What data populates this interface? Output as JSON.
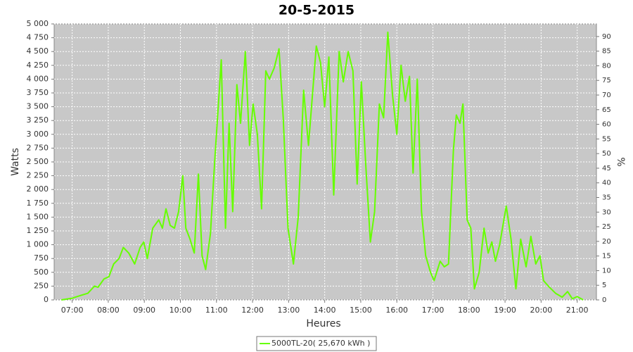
{
  "chart_data": {
    "type": "line",
    "title": "20-5-2015",
    "x_label": "Heures",
    "y_label": "Watts",
    "y2_label": "%",
    "x": [
      "06:42",
      "07:00",
      "07:14",
      "07:26",
      "07:37",
      "07:43",
      "07:53",
      "08:01",
      "08:09",
      "08:18",
      "08:25",
      "08:34",
      "08:44",
      "08:53",
      "08:59",
      "09:05",
      "09:14",
      "09:24",
      "09:30",
      "09:36",
      "09:43",
      "09:50",
      "09:57",
      "10:04",
      "10:09",
      "10:16",
      "10:23",
      "10:30",
      "10:36",
      "10:42",
      "10:50",
      "10:57",
      "11:08",
      "11:15",
      "11:21",
      "11:27",
      "11:34",
      "11:40",
      "11:48",
      "11:55",
      "12:01",
      "12:08",
      "12:15",
      "12:22",
      "12:28",
      "12:36",
      "12:44",
      "12:51",
      "12:59",
      "13:08",
      "13:16",
      "13:25",
      "13:33",
      "13:46",
      "13:53",
      "14:00",
      "14:07",
      "14:15",
      "14:24",
      "14:31",
      "14:39",
      "14:47",
      "14:54",
      "15:01",
      "15:08",
      "15:16",
      "15:23",
      "15:31",
      "15:38",
      "15:45",
      "15:53",
      "16:00",
      "16:07",
      "16:14",
      "16:21",
      "16:27",
      "16:34",
      "16:41",
      "16:48",
      "16:56",
      "17:02",
      "17:12",
      "17:19",
      "17:26",
      "17:34",
      "17:39",
      "17:45",
      "17:50",
      "17:57",
      "18:03",
      "18:09",
      "18:17",
      "18:25",
      "18:32",
      "18:38",
      "18:44",
      "18:51",
      "19:02",
      "19:10",
      "19:18",
      "19:26",
      "19:35",
      "19:43",
      "19:51",
      "19:58",
      "20:04",
      "20:12",
      "20:24",
      "20:35",
      "20:44",
      "20:52",
      "21:00",
      "21:10"
    ],
    "series": [
      {
        "name": "5000TL-20( 25,670 kWh )",
        "color": "#66ff00",
        "values": [
          0,
          30,
          80,
          120,
          250,
          230,
          380,
          420,
          650,
          750,
          950,
          850,
          650,
          950,
          1050,
          750,
          1300,
          1450,
          1300,
          1650,
          1350,
          1300,
          1600,
          2250,
          1300,
          1100,
          850,
          2280,
          800,
          550,
          1200,
          2500,
          4350,
          1300,
          3200,
          1600,
          3900,
          3200,
          4500,
          2800,
          3550,
          3000,
          1650,
          4150,
          4000,
          4200,
          4550,
          3300,
          1300,
          650,
          1500,
          3800,
          2800,
          4600,
          4300,
          3500,
          4400,
          1900,
          4500,
          3950,
          4500,
          4150,
          2100,
          3950,
          2500,
          1050,
          1600,
          3550,
          3300,
          4850,
          3700,
          3000,
          4250,
          3600,
          4050,
          2300,
          4000,
          1600,
          800,
          500,
          350,
          700,
          600,
          650,
          2700,
          3350,
          3200,
          3550,
          1450,
          1300,
          200,
          500,
          1300,
          850,
          1050,
          700,
          1000,
          1700,
          1100,
          200,
          1100,
          600,
          1150,
          650,
          800,
          350,
          250,
          120,
          50,
          150,
          20,
          60,
          0
        ]
      }
    ],
    "xlim": [
      "06:30",
      "21:32"
    ],
    "xticks": [
      "07:00",
      "08:00",
      "09:00",
      "10:00",
      "11:00",
      "12:00",
      "13:00",
      "14:00",
      "15:00",
      "16:00",
      "17:00",
      "18:00",
      "19:00",
      "20:00",
      "21:00"
    ],
    "ylim": [
      0,
      5000
    ],
    "yticks": [
      0,
      250,
      500,
      750,
      {
        "value": 1000,
        "label": "1 000"
      },
      {
        "value": 1250,
        "label": "1 250"
      },
      {
        "value": 1500,
        "label": "1 500"
      },
      {
        "value": 1750,
        "label": "1 750"
      },
      {
        "value": 2000,
        "label": "2 000"
      },
      {
        "value": 2250,
        "label": "2 250"
      },
      {
        "value": 2500,
        "label": "2 500"
      },
      {
        "value": 2750,
        "label": "2 750"
      },
      {
        "value": 3000,
        "label": "3 000"
      },
      {
        "value": 3250,
        "label": "3 250"
      },
      {
        "value": 3500,
        "label": "3 500"
      },
      {
        "value": 3750,
        "label": "3 750"
      },
      {
        "value": 4000,
        "label": "4 000"
      },
      {
        "value": 4250,
        "label": "4 250"
      },
      {
        "value": 4500,
        "label": "4 500"
      },
      {
        "value": 4750,
        "label": "4 750"
      },
      {
        "value": 5000,
        "label": "5 000"
      }
    ],
    "y2lim": [
      0,
      94.3
    ],
    "y2ticks": [
      0,
      5,
      10,
      15,
      20,
      25,
      30,
      35,
      40,
      45,
      50,
      55,
      60,
      65,
      70,
      75,
      80,
      85,
      90
    ],
    "grid": true,
    "legend": "bottom"
  }
}
